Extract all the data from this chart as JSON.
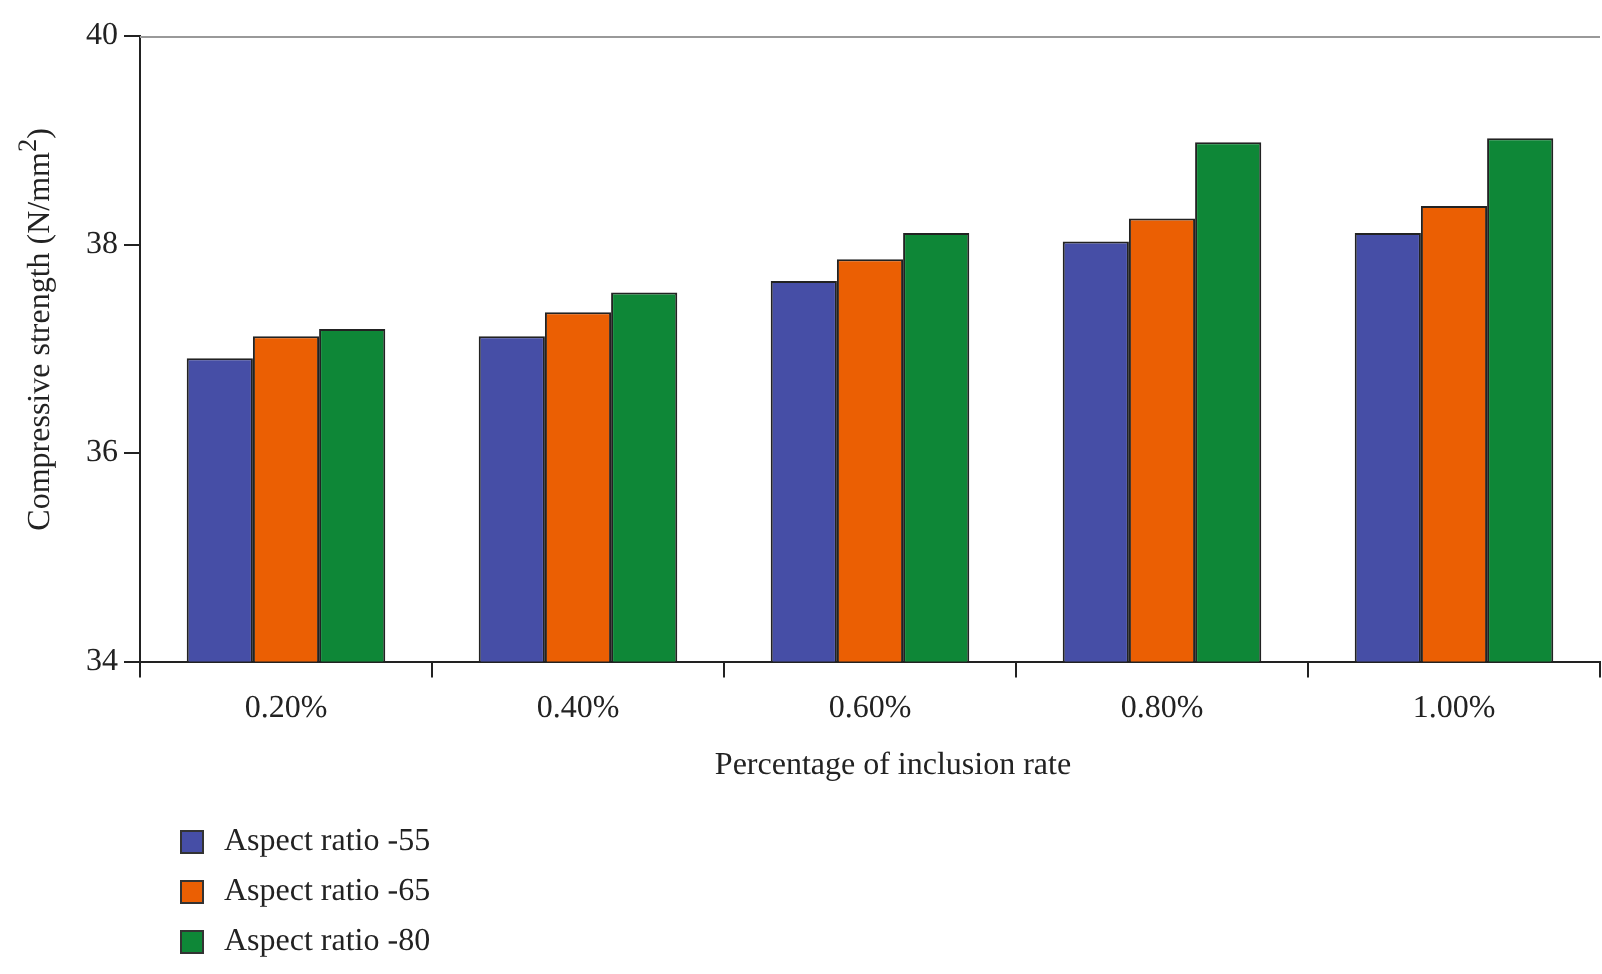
{
  "chart_data": {
    "type": "bar",
    "xlabel": "Percentage of inclusion rate",
    "ylabel": "Compressive strength (N/mm$^{2}$)",
    "categories": [
      "0.20%",
      "0.40%",
      "0.60%",
      "0.80%",
      "1.00%"
    ],
    "series": [
      {
        "name": "Aspect ratio -55",
        "color": "#464ea6",
        "values": [
          36.91,
          37.12,
          37.65,
          38.03,
          38.11
        ]
      },
      {
        "name": "Aspect ratio -65",
        "color": "#eb5f03",
        "values": [
          37.12,
          37.35,
          37.86,
          38.25,
          38.37
        ]
      },
      {
        "name": "Aspect ratio -80",
        "color": "#0e8737",
        "values": [
          37.19,
          37.54,
          38.11,
          38.98,
          39.02
        ]
      }
    ],
    "ylim": [
      34,
      40
    ],
    "yticks": [
      34,
      36,
      38,
      40
    ],
    "grid": false,
    "legend": "bottom left"
  }
}
